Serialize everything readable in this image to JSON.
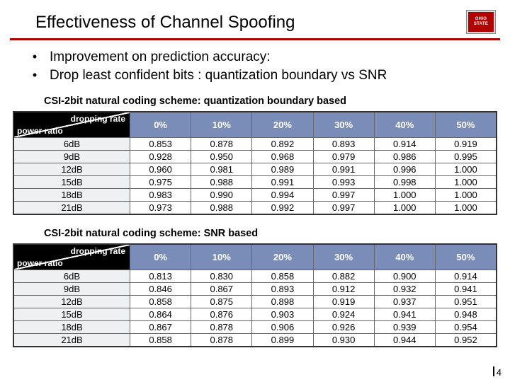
{
  "header": {
    "title": "Effectiveness of Channel Spoofing",
    "logo_lines": [
      "OHIO",
      "STATE"
    ]
  },
  "bullets": [
    "Improvement on prediction accuracy:",
    "Drop least confident bits : quantization boundary vs SNR"
  ],
  "table_common": {
    "corner_label_top": "dropping rate",
    "corner_label_left": "power ratio",
    "columns": [
      "0%",
      "10%",
      "20%",
      "30%",
      "40%",
      "50%"
    ],
    "row_headers": [
      "6dB",
      "9dB",
      "12dB",
      "15dB",
      "18dB",
      "21dB"
    ],
    "header_bg": "#7a8db8",
    "corner_bg": "#000000",
    "row_header_bg": "#eef0f2",
    "border_color": "#333333"
  },
  "table1": {
    "caption": "CSI-2bit natural coding scheme: quantization boundary based",
    "rows": [
      [
        "0.853",
        "0.878",
        "0.892",
        "0.893",
        "0.914",
        "0.919"
      ],
      [
        "0.928",
        "0.950",
        "0.968",
        "0.979",
        "0.986",
        "0.995"
      ],
      [
        "0.960",
        "0.981",
        "0.989",
        "0.991",
        "0.996",
        "1.000"
      ],
      [
        "0.975",
        "0.988",
        "0.991",
        "0.993",
        "0.998",
        "1.000"
      ],
      [
        "0.983",
        "0.990",
        "0.994",
        "0.997",
        "1.000",
        "1.000"
      ],
      [
        "0.973",
        "0.988",
        "0.992",
        "0.997",
        "1.000",
        "1.000"
      ]
    ]
  },
  "table2": {
    "caption": "CSI-2bit natural coding scheme: SNR based",
    "rows": [
      [
        "0.813",
        "0.830",
        "0.858",
        "0.882",
        "0.900",
        "0.914"
      ],
      [
        "0.846",
        "0.867",
        "0.893",
        "0.912",
        "0.932",
        "0.941"
      ],
      [
        "0.858",
        "0.875",
        "0.898",
        "0.919",
        "0.937",
        "0.951"
      ],
      [
        "0.864",
        "0.876",
        "0.903",
        "0.924",
        "0.941",
        "0.948"
      ],
      [
        "0.867",
        "0.878",
        "0.906",
        "0.926",
        "0.939",
        "0.954"
      ],
      [
        "0.858",
        "0.878",
        "0.899",
        "0.930",
        "0.944",
        "0.952"
      ]
    ]
  },
  "page_number": "4"
}
